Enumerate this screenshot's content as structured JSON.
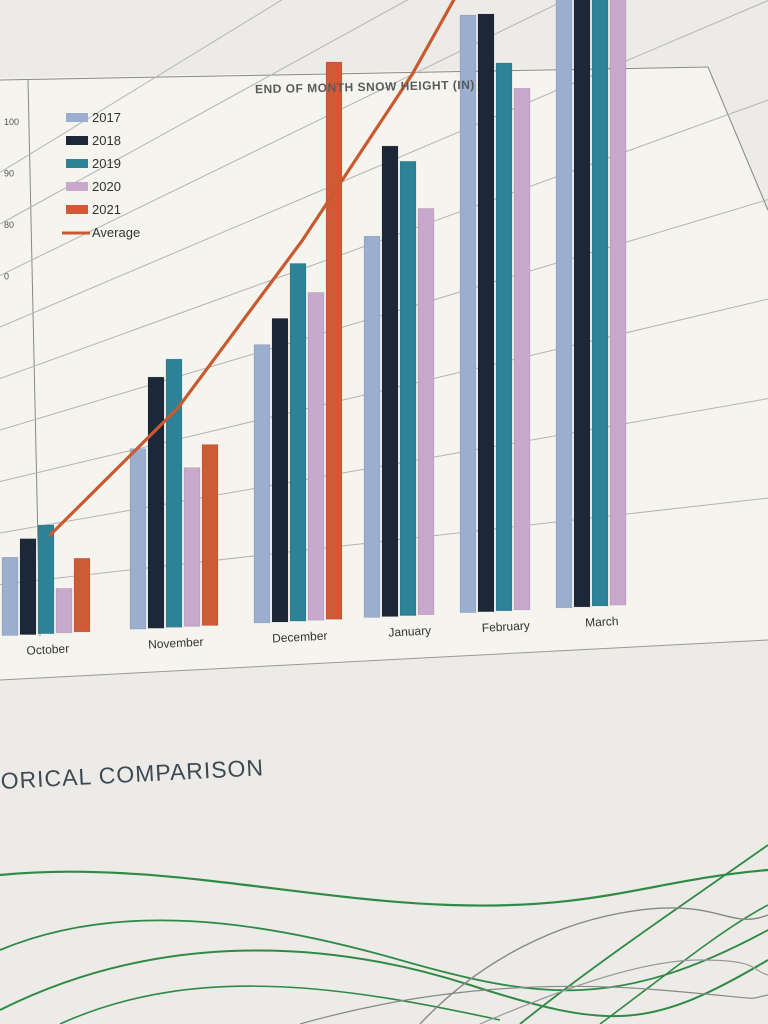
{
  "colors": {
    "2017": "#9aaed0",
    "2018": "#1c2839",
    "2019": "#2e8295",
    "2020": "#c8a8cc",
    "2021": "#d15a36",
    "Average": "#c85a2e"
  },
  "chart_data": {
    "type": "bar",
    "title": "END OF MONTH SNOW HEIGHT (IN)",
    "categories": [
      "October",
      "November",
      "December",
      "January",
      "February",
      "March"
    ],
    "series": [
      {
        "name": "2017",
        "values": [
          15,
          30,
          41,
          51,
          74,
          73
        ]
      },
      {
        "name": "2018",
        "values": [
          18,
          41,
          44,
          62,
          73,
          90
        ]
      },
      {
        "name": "2019",
        "values": [
          20,
          43,
          51,
          59,
          66,
          78
        ]
      },
      {
        "name": "2020",
        "values": [
          8,
          25,
          46,
          52,
          62,
          72
        ]
      },
      {
        "name": "2021",
        "values": [
          13,
          28,
          77,
          0,
          0,
          0
        ]
      }
    ],
    "line_series": {
      "name": "Average",
      "values": [
        18,
        35,
        54,
        70,
        85,
        87
      ]
    },
    "ylim": [
      0,
      100
    ],
    "yticks": [
      "100",
      "90",
      "80",
      "0"
    ],
    "legend_position": "top-left",
    "grid": true
  },
  "section_heading": "ORICAL COMPARISON"
}
